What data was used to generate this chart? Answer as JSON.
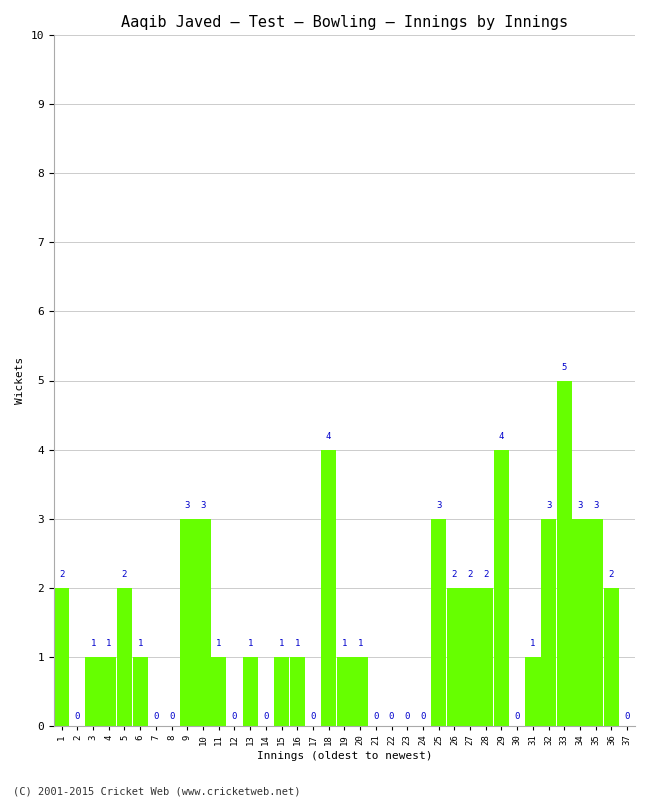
{
  "title": "Aaqib Javed – Test – Bowling – Innings by Innings",
  "xlabel": "Innings (oldest to newest)",
  "ylabel": "Wickets",
  "ylim": [
    0,
    10
  ],
  "yticks": [
    0,
    1,
    2,
    3,
    4,
    5,
    6,
    7,
    8,
    9,
    10
  ],
  "innings": [
    1,
    2,
    3,
    4,
    5,
    6,
    7,
    8,
    9,
    10,
    11,
    12,
    13,
    14,
    15,
    16,
    17,
    18,
    19,
    20,
    21,
    22,
    23,
    24,
    25,
    26,
    27,
    28,
    29,
    30,
    31,
    32,
    33,
    34,
    35,
    36,
    37
  ],
  "wickets": [
    2,
    0,
    1,
    1,
    2,
    1,
    0,
    0,
    3,
    3,
    1,
    0,
    1,
    0,
    1,
    1,
    0,
    4,
    1,
    1,
    0,
    0,
    0,
    0,
    3,
    2,
    2,
    2,
    4,
    0,
    1,
    3,
    5,
    3,
    3,
    2,
    0
  ],
  "bar_color": "#66ff00",
  "label_color": "#0000cc",
  "background_color": "#ffffff",
  "grid_color": "#cccccc",
  "footer": "(C) 2001-2015 Cricket Web (www.cricketweb.net)"
}
